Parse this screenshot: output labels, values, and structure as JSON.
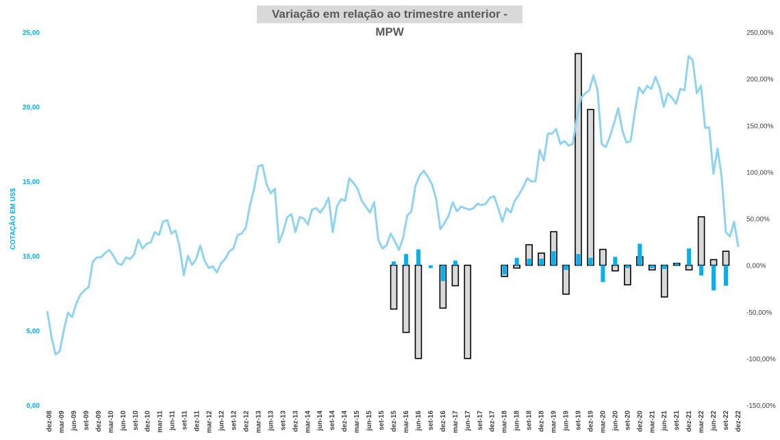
{
  "chart_data": {
    "type": "line",
    "title": "Variação em relação ao trimestre anterior - MPW",
    "ylabel": "COTAÇÃO EM US$",
    "y_left": {
      "ylim": [
        0,
        25
      ],
      "ticks": [
        "0,00",
        "5,00",
        "10,00",
        "15,00",
        "20,00",
        "25,00"
      ]
    },
    "y_right": {
      "ylim": [
        -1.5,
        2.5
      ],
      "ticks": [
        "-150,00%",
        "-100,00%",
        "-50,00%",
        "0,00%",
        "50,00%",
        "100,00%",
        "150,00%",
        "200,00%",
        "250,00%"
      ]
    },
    "x_ticks": [
      "dez-08",
      "mar-09",
      "jun-09",
      "set-09",
      "dez-09",
      "mar-10",
      "jun-10",
      "set-10",
      "dez-10",
      "mar-11",
      "jun-11",
      "set-11",
      "dez-11",
      "mar-12",
      "jun-12",
      "set-12",
      "dez-12",
      "mar-13",
      "jun-13",
      "set-13",
      "dez-13",
      "mar-14",
      "jun-14",
      "set-14",
      "dez-14",
      "mar-15",
      "jun-15",
      "set-15",
      "dez-15",
      "mar-16",
      "jun-16",
      "set-16",
      "dez-16",
      "mar-17",
      "jun-17",
      "set-17",
      "dez-17",
      "mar-18",
      "jun-18",
      "set-18",
      "dez-18",
      "mar-19",
      "jun-19",
      "set-19",
      "dez-19",
      "mar-20",
      "jun-20",
      "set-20",
      "dez-20",
      "mar-21",
      "jun-21",
      "set-21",
      "dez-21",
      "mar-22",
      "jun-22",
      "set-22",
      "dez-22"
    ],
    "price_series": [
      6.3,
      4.6,
      3.4,
      3.6,
      5,
      6.2,
      5.9,
      6.8,
      7.4,
      7.7,
      7.9,
      9.6,
      9.9,
      9.9,
      10.2,
      10.4,
      10,
      9.5,
      9.4,
      9.9,
      9.8,
      10.1,
      11.1,
      10.5,
      10.8,
      10.9,
      11.6,
      11.4,
      12.3,
      12.4,
      11.5,
      11.7,
      10.6,
      8.7,
      10,
      9.4,
      9.8,
      10.7,
      9.7,
      9.2,
      9.3,
      8.9,
      9.5,
      9.8,
      10.3,
      10.5,
      11.4,
      11.5,
      11.9,
      13.4,
      14.5,
      16,
      16.1,
      14.8,
      14.2,
      14.5,
      10.9,
      11.6,
      12.6,
      12.8,
      11.6,
      12.6,
      12.5,
      12.1,
      13.1,
      13.2,
      12.9,
      13.3,
      13.9,
      11.6,
      13.3,
      13.8,
      13.7,
      15.2,
      14.9,
      14.5,
      13.7,
      13.3,
      12.9,
      13.6,
      11.1,
      10.5,
      10.7,
      11.5,
      11,
      10.4,
      11.2,
      12.7,
      13,
      14.7,
      15.4,
      15.7,
      15.3,
      14.8,
      13.8,
      11.8,
      12.2,
      12.7,
      13.6,
      13,
      13.3,
      13.2,
      13.1,
      13.2,
      13.5,
      13.4,
      13.5,
      13.9,
      14,
      13.2,
      12.3,
      13.2,
      12.9,
      13.7,
      14.1,
      14.6,
      15.2,
      15,
      15,
      17.1,
      16.4,
      18.2,
      18.2,
      18.5,
      17.5,
      17.7,
      17.4,
      17.5,
      19.3,
      20.6,
      20.9,
      21.1,
      22.1,
      21.1,
      17.5,
      17.3,
      18,
      18.9,
      19.9,
      18.4,
      17.6,
      17.7,
      19.6,
      21.3,
      20.9,
      21.4,
      21.2,
      22,
      21.3,
      20,
      20.9,
      20.6,
      20.2,
      21.2,
      21.1,
      23.4,
      23.1,
      20.9,
      21.4,
      18.6,
      18.6,
      15.5,
      17.2,
      15.3,
      11.6,
      11.3,
      12.3,
      10.6
    ],
    "series": [
      {
        "name": "",
        "color": "#00b0f0",
        "quarters": [
          28,
          29,
          30,
          31,
          32,
          33,
          37,
          38,
          39,
          40,
          41,
          42,
          43,
          44,
          45,
          46,
          47,
          48,
          49,
          50,
          51,
          52,
          53,
          54,
          55
        ],
        "values": [
          0.04,
          0.12,
          0.17,
          -0.03,
          -0.17,
          0.05,
          -0.1,
          0.08,
          0.07,
          0.07,
          0.15,
          -0.05,
          0.12,
          0.08,
          -0.18,
          0.09,
          -0.03,
          0.23,
          -0.03,
          -0.04,
          0.02,
          0.18,
          -0.11,
          -0.27,
          -0.22
        ]
      },
      {
        "name": "",
        "color": "#d9d9d9",
        "quarters": [
          28,
          29,
          30,
          32,
          33,
          34,
          37,
          38,
          39,
          40,
          41,
          42,
          43,
          44,
          45,
          46,
          47,
          48,
          49,
          50,
          51,
          52,
          53,
          54,
          55
        ],
        "values": [
          -0.47,
          -0.72,
          -1.0,
          -0.46,
          -0.22,
          -1.0,
          -0.12,
          -0.03,
          0.22,
          0.13,
          0.36,
          -0.31,
          2.27,
          1.67,
          0.17,
          -0.06,
          -0.21,
          0.09,
          -0.05,
          -0.34,
          0.02,
          -0.05,
          0.52,
          0.06,
          0.15
        ]
      }
    ]
  }
}
